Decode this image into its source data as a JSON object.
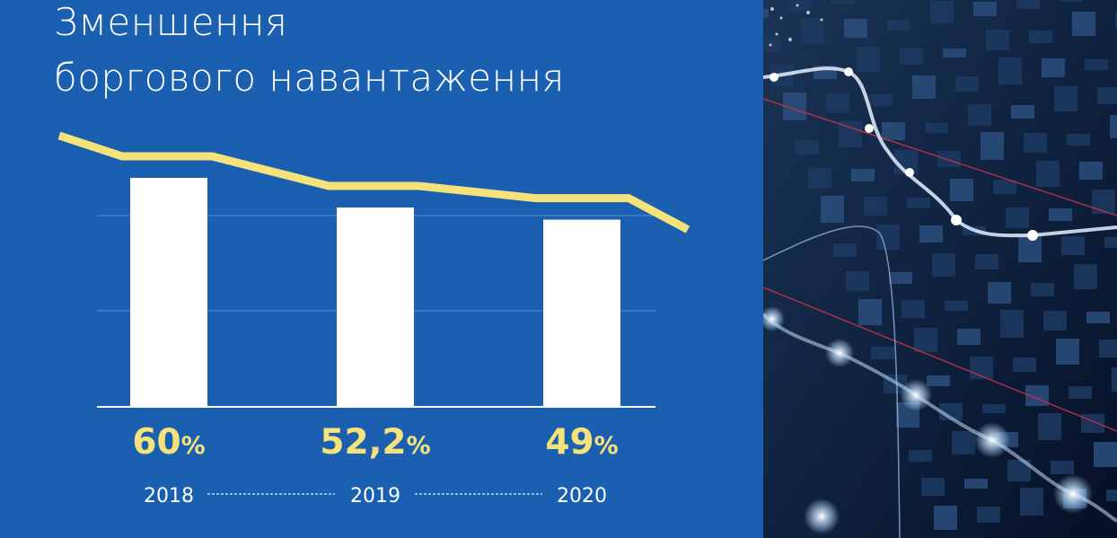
{
  "slide": {
    "title_line1": "Зменшення",
    "title_line2": "боргового навантаження"
  },
  "chart_data": {
    "type": "bar",
    "categories": [
      "2018",
      "2019",
      "2020"
    ],
    "values": [
      60,
      52.2,
      49
    ],
    "value_labels": [
      {
        "num": "60",
        "unit": "%"
      },
      {
        "num": "52,2",
        "unit": "%"
      },
      {
        "num": "49",
        "unit": "%"
      }
    ],
    "overlay_trend_line": true,
    "grid": true,
    "colors": {
      "background": "#1a5fb0",
      "bar": "#ffffff",
      "trend_line": "#f5e27a",
      "value_label": "#f5e27a",
      "year_label": "#ffffff",
      "grid": "#5b8fd0"
    }
  },
  "decor": {
    "photo": "abstract-financial-graph-photo"
  }
}
